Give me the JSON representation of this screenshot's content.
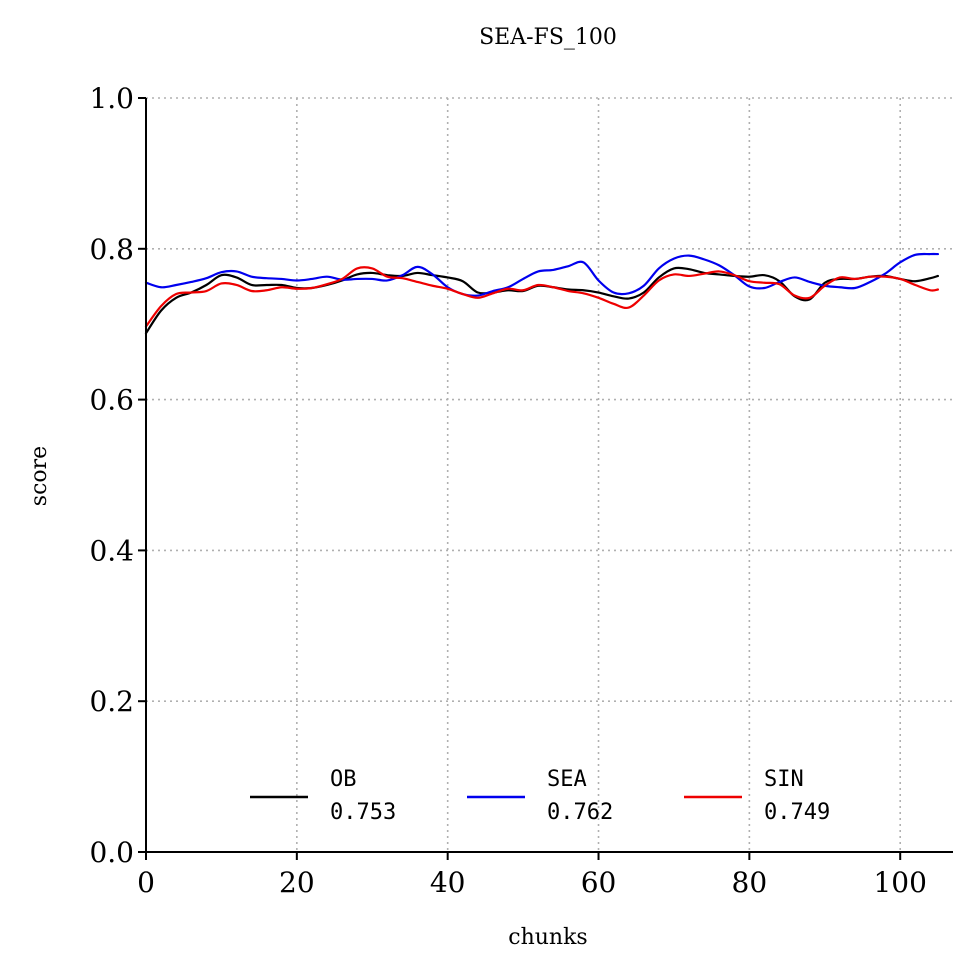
{
  "chart_data": {
    "type": "line",
    "title": "SEA-FS_100",
    "xlabel": "chunks",
    "ylabel": "score",
    "xlim": [
      0,
      107
    ],
    "ylim": [
      0.0,
      1.0
    ],
    "xticks": [
      "0",
      "20",
      "40",
      "60",
      "80",
      "100"
    ],
    "xtick_values": [
      0,
      20,
      40,
      60,
      80,
      100
    ],
    "yticks": [
      "0.0",
      "0.2",
      "0.4",
      "0.6",
      "0.8",
      "1.0"
    ],
    "ytick_values": [
      0.0,
      0.2,
      0.4,
      0.6,
      0.8,
      1.0
    ],
    "grid": true,
    "legend_placement": "lower-center",
    "x": [
      0,
      2,
      4,
      6,
      8,
      10,
      12,
      14,
      16,
      18,
      20,
      22,
      24,
      26,
      28,
      30,
      32,
      34,
      36,
      38,
      40,
      42,
      44,
      46,
      48,
      50,
      52,
      54,
      56,
      58,
      60,
      62,
      64,
      66,
      68,
      70,
      72,
      74,
      76,
      78,
      80,
      82,
      84,
      86,
      88,
      90,
      92,
      94,
      96,
      98,
      100,
      102,
      104,
      105
    ],
    "series": [
      {
        "name": "OB",
        "legend_value": "0.753",
        "color": "#000000",
        "values": [
          0.688,
          0.718,
          0.735,
          0.742,
          0.752,
          0.765,
          0.762,
          0.752,
          0.752,
          0.752,
          0.748,
          0.748,
          0.752,
          0.758,
          0.766,
          0.768,
          0.765,
          0.764,
          0.768,
          0.765,
          0.762,
          0.757,
          0.742,
          0.742,
          0.745,
          0.744,
          0.751,
          0.749,
          0.746,
          0.745,
          0.742,
          0.737,
          0.734,
          0.742,
          0.762,
          0.774,
          0.773,
          0.768,
          0.766,
          0.764,
          0.763,
          0.765,
          0.757,
          0.737,
          0.733,
          0.755,
          0.76,
          0.76,
          0.763,
          0.764,
          0.76,
          0.757,
          0.761,
          0.764
        ]
      },
      {
        "name": "SEA",
        "legend_value": "0.762",
        "color": "#0000ee",
        "values": [
          0.755,
          0.749,
          0.752,
          0.756,
          0.761,
          0.769,
          0.77,
          0.763,
          0.761,
          0.76,
          0.758,
          0.76,
          0.763,
          0.759,
          0.76,
          0.76,
          0.758,
          0.765,
          0.776,
          0.766,
          0.749,
          0.74,
          0.738,
          0.744,
          0.749,
          0.76,
          0.77,
          0.772,
          0.777,
          0.782,
          0.758,
          0.742,
          0.741,
          0.751,
          0.774,
          0.787,
          0.791,
          0.786,
          0.778,
          0.765,
          0.75,
          0.748,
          0.756,
          0.762,
          0.756,
          0.751,
          0.749,
          0.748,
          0.756,
          0.767,
          0.782,
          0.792,
          0.793,
          0.793
        ]
      },
      {
        "name": "SIN",
        "legend_value": "0.749",
        "color": "#ee0000",
        "values": [
          0.697,
          0.724,
          0.74,
          0.742,
          0.744,
          0.754,
          0.752,
          0.744,
          0.745,
          0.749,
          0.747,
          0.748,
          0.753,
          0.76,
          0.774,
          0.774,
          0.763,
          0.761,
          0.756,
          0.751,
          0.747,
          0.74,
          0.735,
          0.741,
          0.747,
          0.745,
          0.752,
          0.749,
          0.744,
          0.741,
          0.735,
          0.727,
          0.722,
          0.738,
          0.758,
          0.766,
          0.764,
          0.767,
          0.77,
          0.765,
          0.757,
          0.755,
          0.753,
          0.738,
          0.735,
          0.751,
          0.762,
          0.76,
          0.763,
          0.763,
          0.76,
          0.752,
          0.745,
          0.746
        ]
      }
    ]
  }
}
